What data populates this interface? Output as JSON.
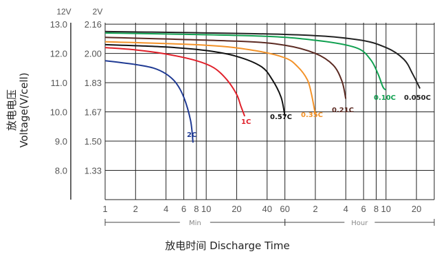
{
  "chart_data": {
    "type": "line",
    "title": "",
    "xlabel": "放电时间 Discharge Time",
    "ylabel": [
      "放电电压",
      "Voltage(V/cell)"
    ],
    "x_scale": "log",
    "x_unit_note": "Time plotted on a continuous log scale; 1–60 labelled in minutes, 2–20 labelled in hours",
    "x_range_minutes": [
      1,
      1800
    ],
    "y_unit_headers": [
      "12V",
      "2V"
    ],
    "y_range_12v": [
      8.0,
      13.0
    ],
    "y_ticks": [
      {
        "v12": "13.0",
        "v2": "2.16",
        "value": 13.0
      },
      {
        "v12": "12.0",
        "v2": "2.00",
        "value": 12.0
      },
      {
        "v12": "11.0",
        "v2": "1.83",
        "value": 11.0
      },
      {
        "v12": "10.0",
        "v2": "1.67",
        "value": 10.0
      },
      {
        "v12": "9.0",
        "v2": "1.50",
        "value": 9.0
      },
      {
        "v12": "8.0",
        "v2": "1.33",
        "value": 8.0
      }
    ],
    "x_ticks": [
      {
        "label": "1",
        "minutes": 1
      },
      {
        "label": "2",
        "minutes": 2
      },
      {
        "label": "4",
        "minutes": 4
      },
      {
        "label": "6",
        "minutes": 6
      },
      {
        "label": "8",
        "minutes": 8
      },
      {
        "label": "10",
        "minutes": 10
      },
      {
        "label": "20",
        "minutes": 20
      },
      {
        "label": "40",
        "minutes": 40
      },
      {
        "label": "60",
        "minutes": 60
      },
      {
        "label": "2",
        "minutes": 120
      },
      {
        "label": "4",
        "minutes": 240
      },
      {
        "label": "6",
        "minutes": 360
      },
      {
        "label": "8",
        "minutes": 480
      },
      {
        "label": "10",
        "minutes": 600
      },
      {
        "label": "20",
        "minutes": 1200
      }
    ],
    "x_ranges": [
      {
        "label": "Min",
        "from_minutes": 1,
        "to_minutes": 60
      },
      {
        "label": "Hour",
        "from_minutes": 60,
        "to_minutes": 1800
      }
    ],
    "grid": true,
    "series": [
      {
        "name": "2C",
        "color": "#1f3a93",
        "points": [
          [
            1,
            11.75
          ],
          [
            2,
            11.62
          ],
          [
            3,
            11.5
          ],
          [
            4,
            11.3
          ],
          [
            5,
            11.0
          ],
          [
            6,
            10.5
          ],
          [
            7,
            9.7
          ],
          [
            7.4,
            8.95
          ]
        ]
      },
      {
        "name": "1C",
        "color": "#e0202a",
        "points": [
          [
            1,
            12.2
          ],
          [
            2,
            12.12
          ],
          [
            4,
            11.98
          ],
          [
            8,
            11.75
          ],
          [
            12,
            11.5
          ],
          [
            16,
            11.1
          ],
          [
            20,
            10.6
          ],
          [
            22,
            10.2
          ],
          [
            24,
            9.85
          ]
        ]
      },
      {
        "name": "0.57C",
        "color": "#111111",
        "points": [
          [
            1,
            12.3
          ],
          [
            4,
            12.22
          ],
          [
            10,
            12.1
          ],
          [
            20,
            11.9
          ],
          [
            35,
            11.55
          ],
          [
            45,
            11.1
          ],
          [
            55,
            10.5
          ],
          [
            60,
            9.85
          ]
        ]
      },
      {
        "name": "0.35C",
        "color": "#f39228",
        "points": [
          [
            1,
            12.4
          ],
          [
            10,
            12.28
          ],
          [
            30,
            12.1
          ],
          [
            60,
            11.85
          ],
          [
            80,
            11.55
          ],
          [
            100,
            11.1
          ],
          [
            110,
            10.6
          ],
          [
            120,
            9.92
          ]
        ]
      },
      {
        "name": "0.21C",
        "color": "#5b2a22",
        "points": [
          [
            1,
            12.55
          ],
          [
            20,
            12.42
          ],
          [
            60,
            12.28
          ],
          [
            120,
            12.0
          ],
          [
            180,
            11.6
          ],
          [
            220,
            11.05
          ],
          [
            240,
            10.45
          ]
        ]
      },
      {
        "name": "0.10C",
        "color": "#10a050",
        "points": [
          [
            1,
            12.7
          ],
          [
            30,
            12.6
          ],
          [
            120,
            12.45
          ],
          [
            300,
            12.2
          ],
          [
            420,
            11.8
          ],
          [
            500,
            11.3
          ],
          [
            560,
            10.85
          ],
          [
            600,
            10.75
          ]
        ]
      },
      {
        "name": "0.050C",
        "color": "#222222",
        "points": [
          [
            1,
            12.75
          ],
          [
            60,
            12.65
          ],
          [
            300,
            12.48
          ],
          [
            600,
            12.2
          ],
          [
            900,
            11.8
          ],
          [
            1100,
            11.3
          ],
          [
            1300,
            10.8
          ]
        ]
      }
    ]
  }
}
